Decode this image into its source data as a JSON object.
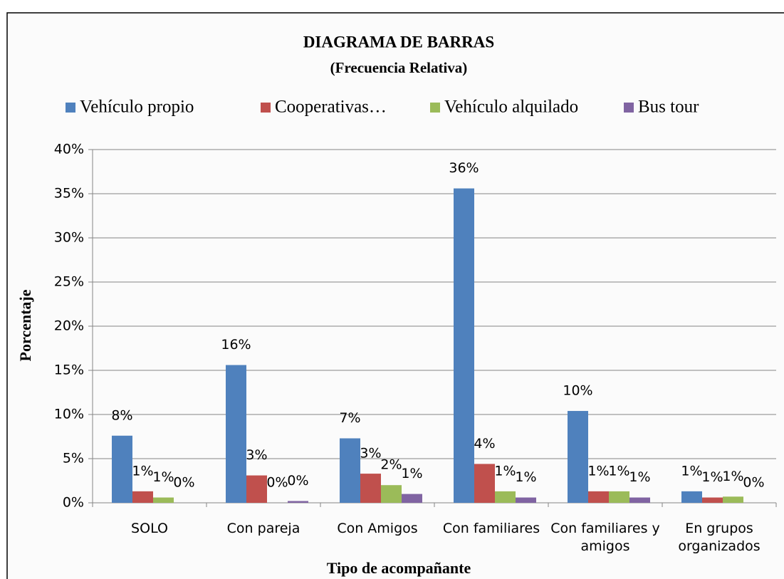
{
  "chart_data": {
    "type": "bar",
    "title": "DIAGRAMA DE BARRAS",
    "subtitle": "(Frecuencia Relativa)",
    "y_label": "Porcentaje",
    "x_label": "Tipo de acompañante",
    "categories": [
      "SOLO",
      "Con pareja",
      "Con Amigos",
      "Con familiares",
      "Con familiares y amigos",
      "En grupos organizados"
    ],
    "series": [
      {
        "name": "Vehículo propio",
        "color": "#4f81bd",
        "values": [
          7.6,
          15.6,
          7.3,
          35.6,
          10.4,
          1.3
        ],
        "value_labels": [
          "8%",
          "16%",
          "7%",
          "36%",
          "10%",
          "1%"
        ]
      },
      {
        "name": "Cooperativas…",
        "color": "#c0504d",
        "values": [
          1.3,
          3.1,
          3.3,
          4.4,
          1.3,
          0.6
        ],
        "value_labels": [
          "1%",
          "3%",
          "3%",
          "4%",
          "1%",
          "1%"
        ]
      },
      {
        "name": "Vehículo alquilado",
        "color": "#9bbb59",
        "values": [
          0.6,
          0,
          2.0,
          1.3,
          1.3,
          0.7
        ],
        "value_labels": [
          "1%",
          "0%",
          "2%",
          "1%",
          "1%",
          "1%"
        ]
      },
      {
        "name": "Bus tour",
        "color": "#8064a2",
        "values": [
          0,
          0.2,
          1.0,
          0.6,
          0.6,
          0
        ],
        "value_labels": [
          "0%",
          "0%",
          "1%",
          "1%",
          "1%",
          "0%"
        ]
      }
    ],
    "ylim": [
      0,
      40
    ],
    "yticks": [
      {
        "value": 0,
        "label": "0%"
      },
      {
        "value": 5,
        "label": "5%"
      },
      {
        "value": 10,
        "label": "10%"
      },
      {
        "value": 15,
        "label": "15%"
      },
      {
        "value": 20,
        "label": "20%"
      },
      {
        "value": 25,
        "label": "25%"
      },
      {
        "value": 30,
        "label": "30%"
      },
      {
        "value": 35,
        "label": "35%"
      },
      {
        "value": 40,
        "label": "40%"
      }
    ],
    "grid": true,
    "legend": "top"
  }
}
